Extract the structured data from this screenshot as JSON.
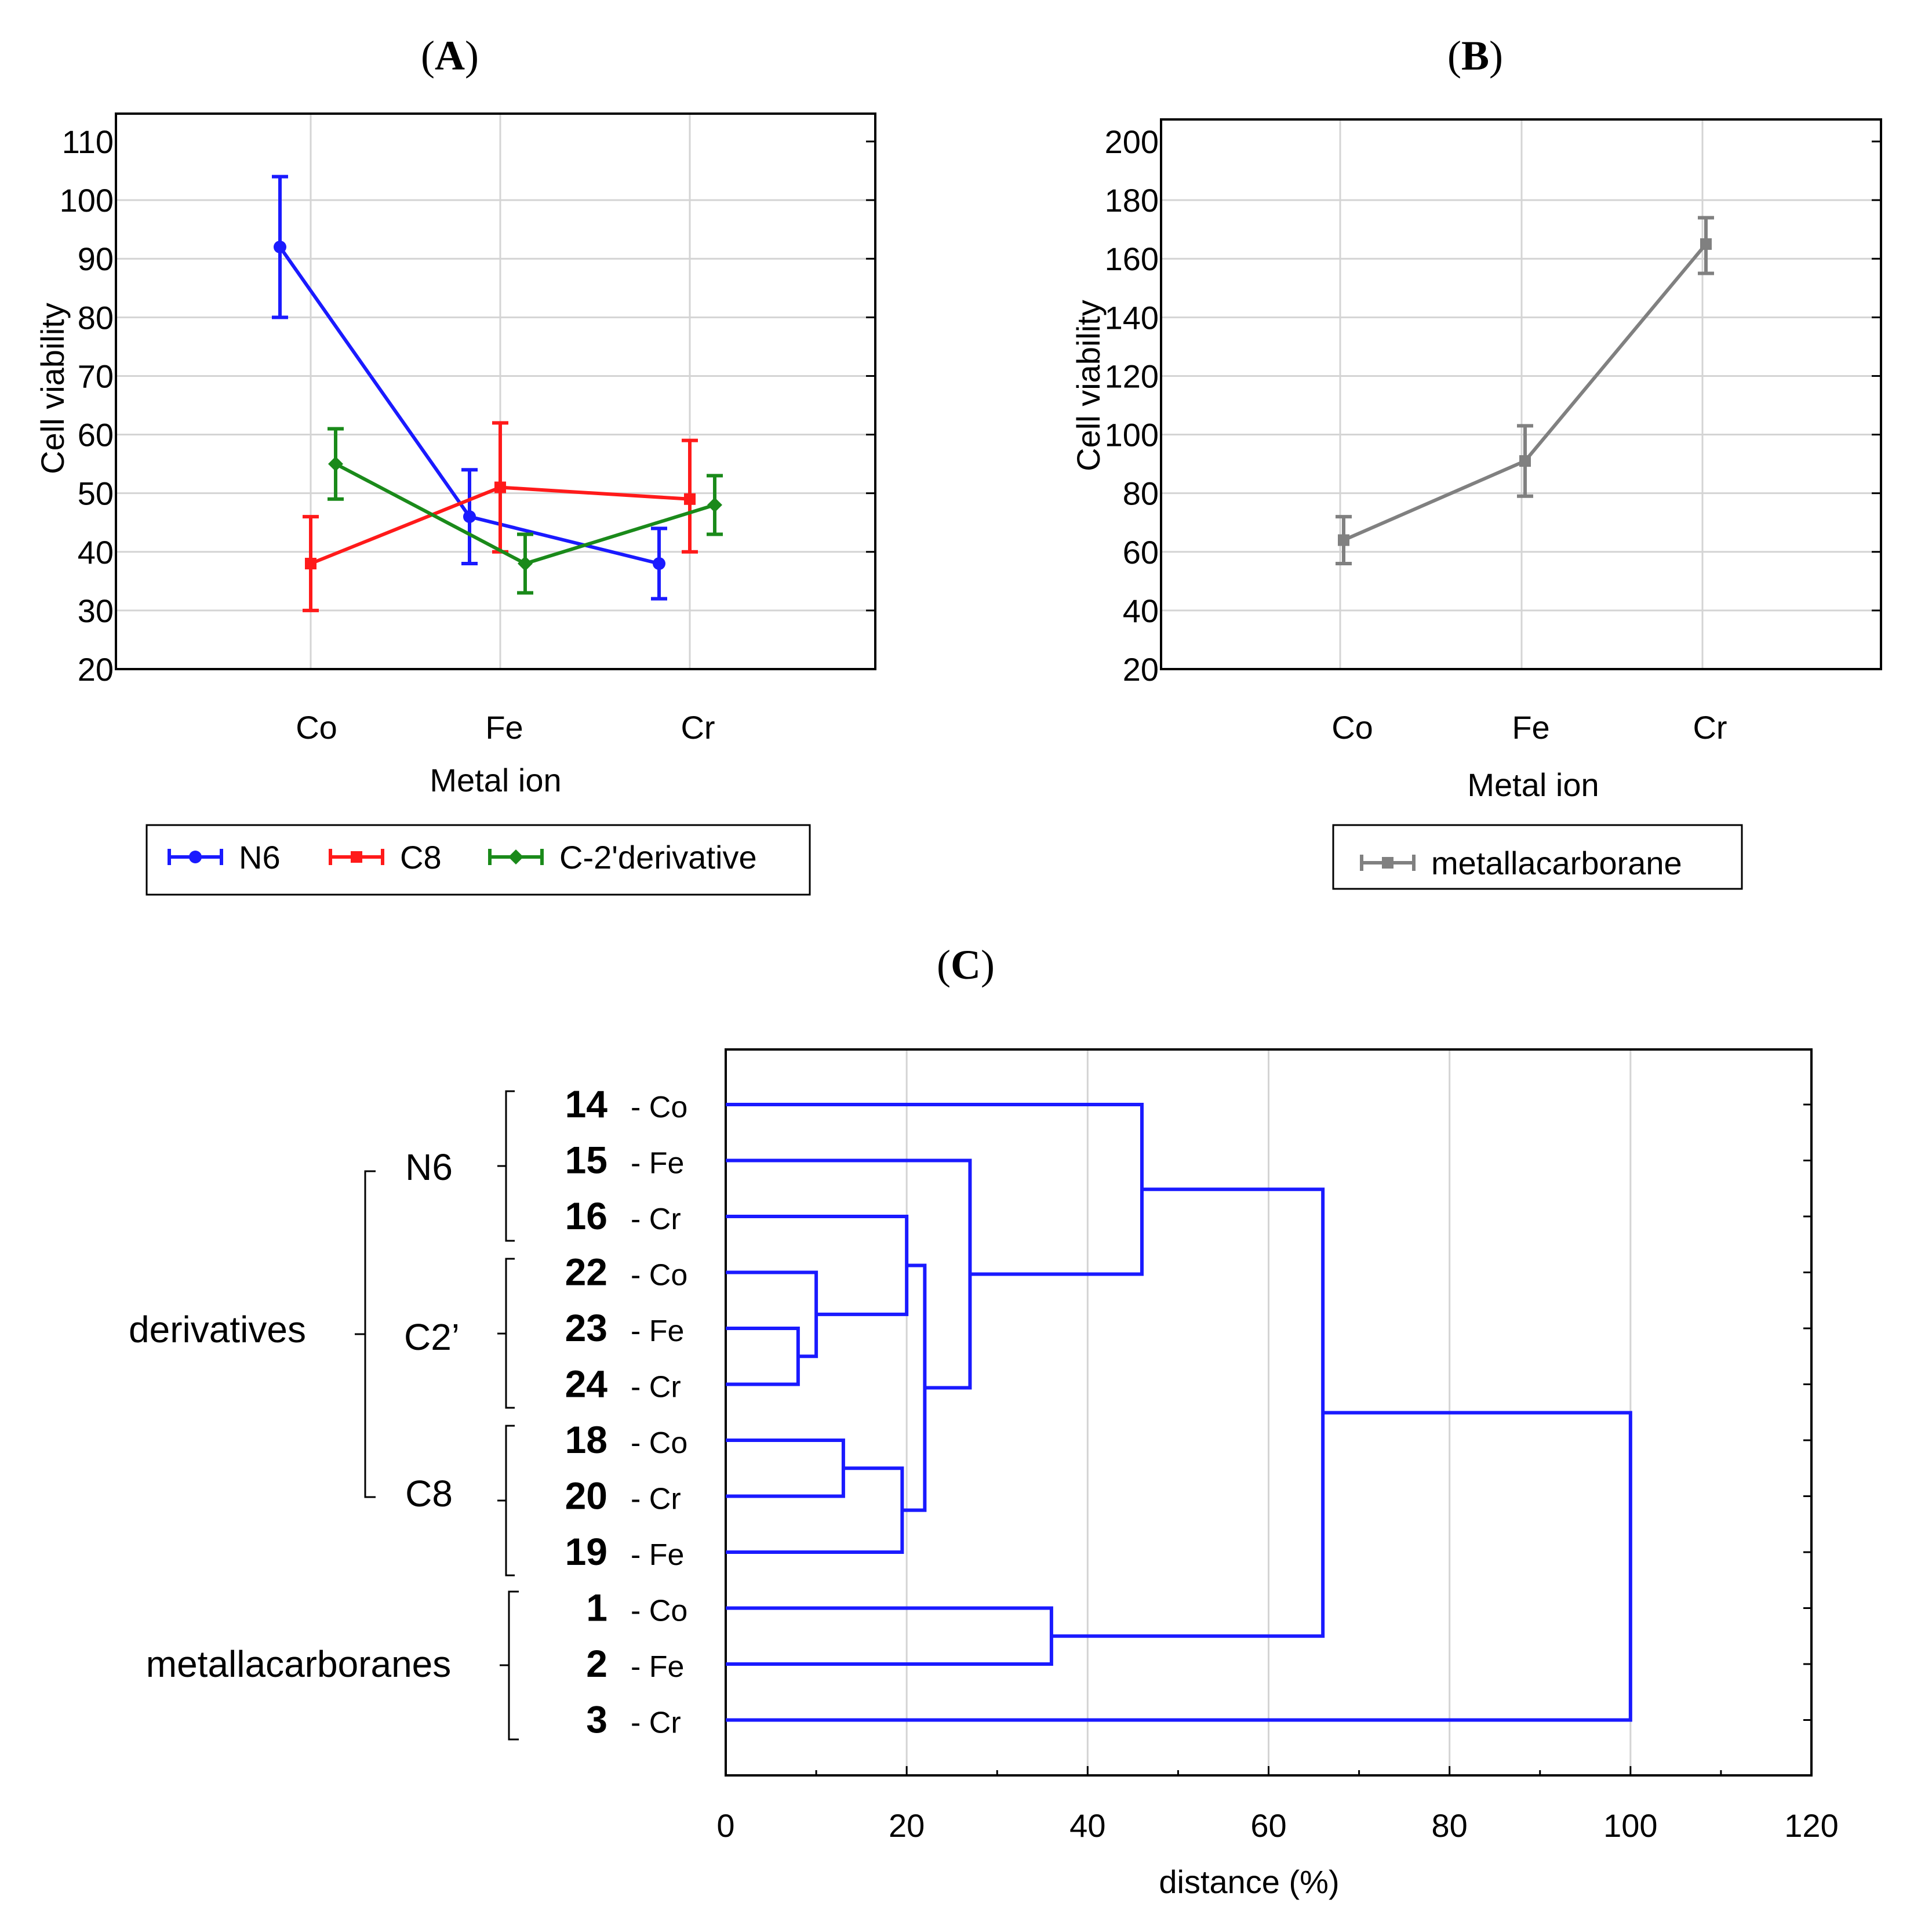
{
  "panels": {
    "A": {
      "letter": "A"
    },
    "B": {
      "letter": "B"
    },
    "C": {
      "letter": "C"
    }
  },
  "chart_data": [
    {
      "type": "line",
      "panel": "A",
      "xlabel": "Metal ion",
      "ylabel": "Cell viability",
      "categories": [
        "Co",
        "Fe",
        "Cr"
      ],
      "yticks": [
        110,
        100,
        90,
        80,
        70,
        60,
        50,
        40,
        30,
        20
      ],
      "ylim": [
        20,
        110
      ],
      "grid": true,
      "error_bars": true,
      "legend": "bottom",
      "series": [
        {
          "name": "N6",
          "color": "#1a1aff",
          "marker": "circle",
          "values": [
            92,
            46,
            38
          ],
          "err_low": [
            80,
            38,
            32
          ],
          "err_high": [
            104,
            54,
            44
          ]
        },
        {
          "name": "C8",
          "color": "#ff1a1a",
          "marker": "square",
          "values": [
            38,
            51,
            49
          ],
          "err_low": [
            30,
            40,
            40
          ],
          "err_high": [
            46,
            62,
            59
          ]
        },
        {
          "name": "C-2'derivative",
          "color": "#1a8a1a",
          "marker": "diamond",
          "values": [
            55,
            38,
            48
          ],
          "err_low": [
            49,
            33,
            43
          ],
          "err_high": [
            61,
            43,
            53
          ]
        }
      ]
    },
    {
      "type": "line",
      "panel": "B",
      "xlabel": "Metal ion",
      "ylabel": "Cell viability",
      "categories": [
        "Co",
        "Fe",
        "Cr"
      ],
      "yticks": [
        200,
        180,
        160,
        140,
        120,
        100,
        80,
        60,
        40,
        20
      ],
      "ylim": [
        20,
        200
      ],
      "grid": true,
      "error_bars": true,
      "legend": "bottom",
      "series": [
        {
          "name": "metallacarborane",
          "color": "#808080",
          "marker": "square",
          "values": [
            64,
            91,
            165
          ],
          "err_low": [
            56,
            79,
            155
          ],
          "err_high": [
            72,
            103,
            174
          ]
        }
      ]
    },
    {
      "type": "dendrogram",
      "panel": "C",
      "xlabel": "distance (%)",
      "xticks": [
        0,
        20,
        40,
        60,
        80,
        100,
        120
      ],
      "xlim": [
        0,
        120
      ],
      "grid": true,
      "leaves": [
        {
          "num": "14",
          "ion": "- Co"
        },
        {
          "num": "15",
          "ion": "- Fe"
        },
        {
          "num": "16",
          "ion": "- Cr"
        },
        {
          "num": "22",
          "ion": "- Co"
        },
        {
          "num": "23",
          "ion": "- Fe"
        },
        {
          "num": "24",
          "ion": "- Cr"
        },
        {
          "num": "18",
          "ion": "- Co"
        },
        {
          "num": "20",
          "ion": "- Cr"
        },
        {
          "num": "19",
          "ion": "- Fe"
        },
        {
          "num": "1",
          "ion": "- Co"
        },
        {
          "num": "2",
          "ion": "- Fe"
        },
        {
          "num": "3",
          "ion": "- Cr"
        }
      ],
      "merges": [
        {
          "a": 4,
          "b": 5,
          "height": 8
        },
        {
          "a": 3,
          "b": 12,
          "height": 10
        },
        {
          "a": 6,
          "b": 7,
          "height": 13
        },
        {
          "a": 14,
          "b": 8,
          "height": 19.5
        },
        {
          "a": 2,
          "b": 13,
          "height": 20
        },
        {
          "a": 16,
          "b": 15,
          "height": 22
        },
        {
          "a": 1,
          "b": 17,
          "height": 27
        },
        {
          "a": 9,
          "b": 10,
          "height": 36
        },
        {
          "a": 0,
          "b": 18,
          "height": 46
        },
        {
          "a": 20,
          "b": 19,
          "height": 66
        },
        {
          "a": 21,
          "b": 11,
          "height": 100
        }
      ],
      "group_labels": {
        "n6": "N6",
        "c2": "C2’",
        "c8": "C8",
        "derivatives": "derivatives",
        "metallacarboranes": "metallacarboranes"
      }
    }
  ]
}
